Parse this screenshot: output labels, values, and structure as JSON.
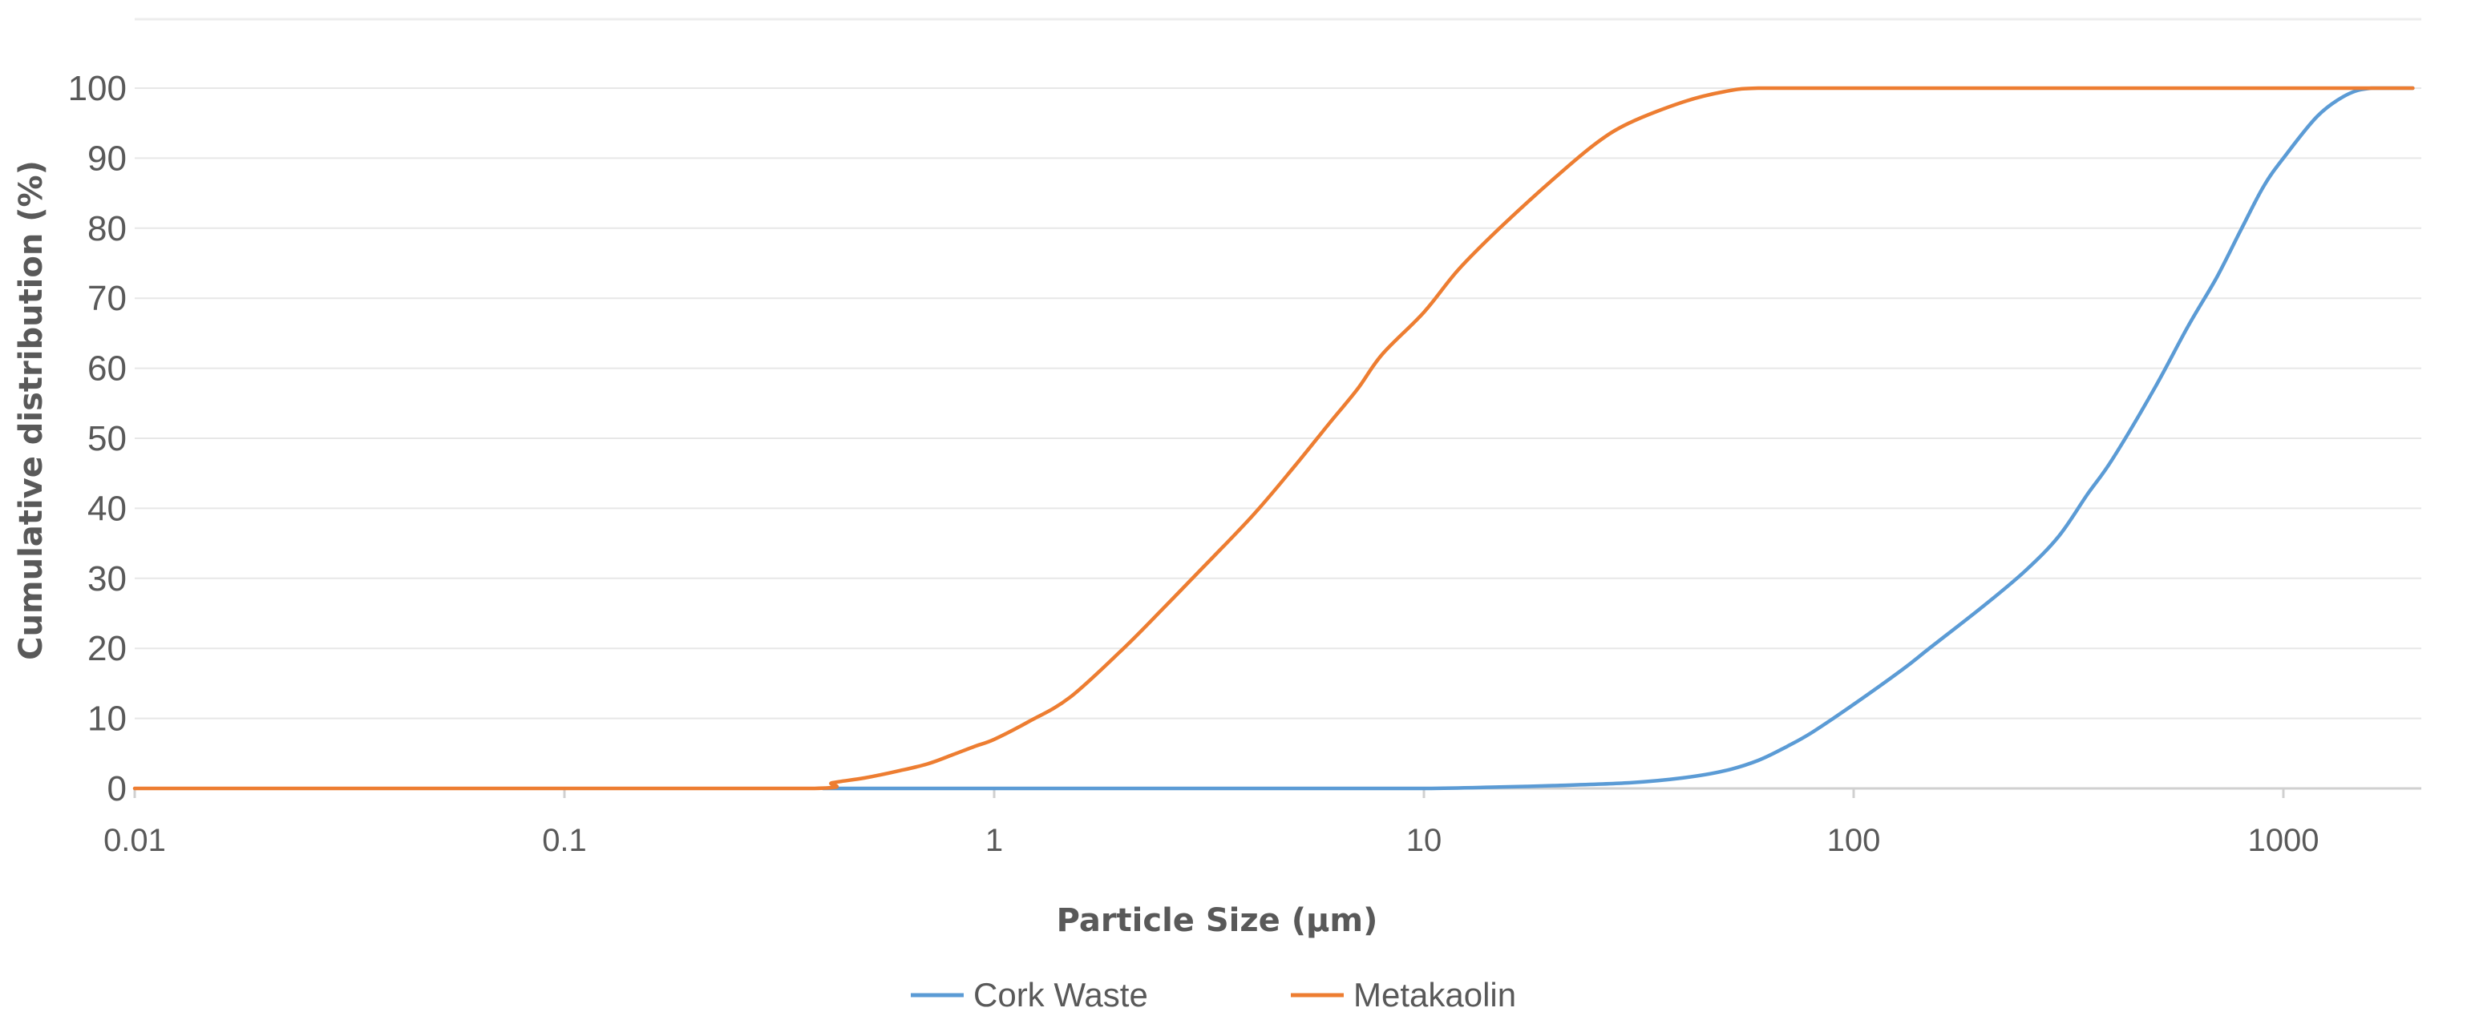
{
  "chart_data": {
    "type": "line",
    "title": "",
    "xlabel": "Particle Size (µm)",
    "ylabel": "Cumulative distribution (%)",
    "x_scale": "log",
    "xlim": [
      0.01,
      2000
    ],
    "ylim": [
      0,
      100
    ],
    "x_ticks": [
      0.01,
      0.1,
      1,
      10,
      100,
      1000
    ],
    "x_tick_labels": [
      "0.01",
      "0.1",
      "1",
      "10",
      "100",
      "1000"
    ],
    "y_ticks": [
      0,
      10,
      20,
      30,
      40,
      50,
      60,
      70,
      80,
      90,
      100
    ],
    "y_tick_labels": [
      "0",
      "10",
      "20",
      "30",
      "40",
      "50",
      "60",
      "70",
      "80",
      "90",
      "100"
    ],
    "grid": {
      "horizontal": true,
      "vertical": false
    },
    "legend_position": "bottom-center",
    "series": [
      {
        "name": "Cork Waste",
        "color": "#5B9BD5",
        "points": [
          [
            0.4,
            0
          ],
          [
            1,
            0
          ],
          [
            3,
            0
          ],
          [
            5,
            0
          ],
          [
            10,
            0
          ],
          [
            15,
            0.2
          ],
          [
            20,
            0.4
          ],
          [
            30,
            0.8
          ],
          [
            40,
            1.5
          ],
          [
            50,
            2.5
          ],
          [
            60,
            4
          ],
          [
            70,
            6
          ],
          [
            80,
            8
          ],
          [
            100,
            12
          ],
          [
            130,
            17
          ],
          [
            150,
            20
          ],
          [
            200,
            26
          ],
          [
            250,
            31
          ],
          [
            300,
            36
          ],
          [
            350,
            42
          ],
          [
            400,
            47
          ],
          [
            500,
            57
          ],
          [
            600,
            66
          ],
          [
            700,
            73
          ],
          [
            800,
            80
          ],
          [
            900,
            86
          ],
          [
            1000,
            90
          ],
          [
            1200,
            96
          ],
          [
            1400,
            99
          ],
          [
            1600,
            100
          ],
          [
            2000,
            100
          ]
        ]
      },
      {
        "name": "Metakaolin",
        "color": "#ED7D31",
        "points": [
          [
            0.01,
            0
          ],
          [
            0.1,
            0
          ],
          [
            0.38,
            0
          ],
          [
            0.42,
            0.8
          ],
          [
            0.5,
            1.5
          ],
          [
            0.6,
            2.5
          ],
          [
            0.7,
            3.5
          ],
          [
            0.8,
            4.8
          ],
          [
            0.9,
            6
          ],
          [
            1,
            7
          ],
          [
            1.2,
            9.5
          ],
          [
            1.5,
            13
          ],
          [
            2,
            20
          ],
          [
            2.5,
            26
          ],
          [
            3,
            31
          ],
          [
            4,
            39
          ],
          [
            5,
            46
          ],
          [
            6,
            52
          ],
          [
            7,
            57
          ],
          [
            8,
            62
          ],
          [
            10,
            68
          ],
          [
            12,
            74
          ],
          [
            15,
            80
          ],
          [
            20,
            87
          ],
          [
            25,
            92
          ],
          [
            30,
            95
          ],
          [
            40,
            98
          ],
          [
            50,
            99.5
          ],
          [
            60,
            100
          ],
          [
            100,
            100
          ],
          [
            1000,
            100
          ],
          [
            2000,
            100
          ]
        ]
      }
    ]
  }
}
